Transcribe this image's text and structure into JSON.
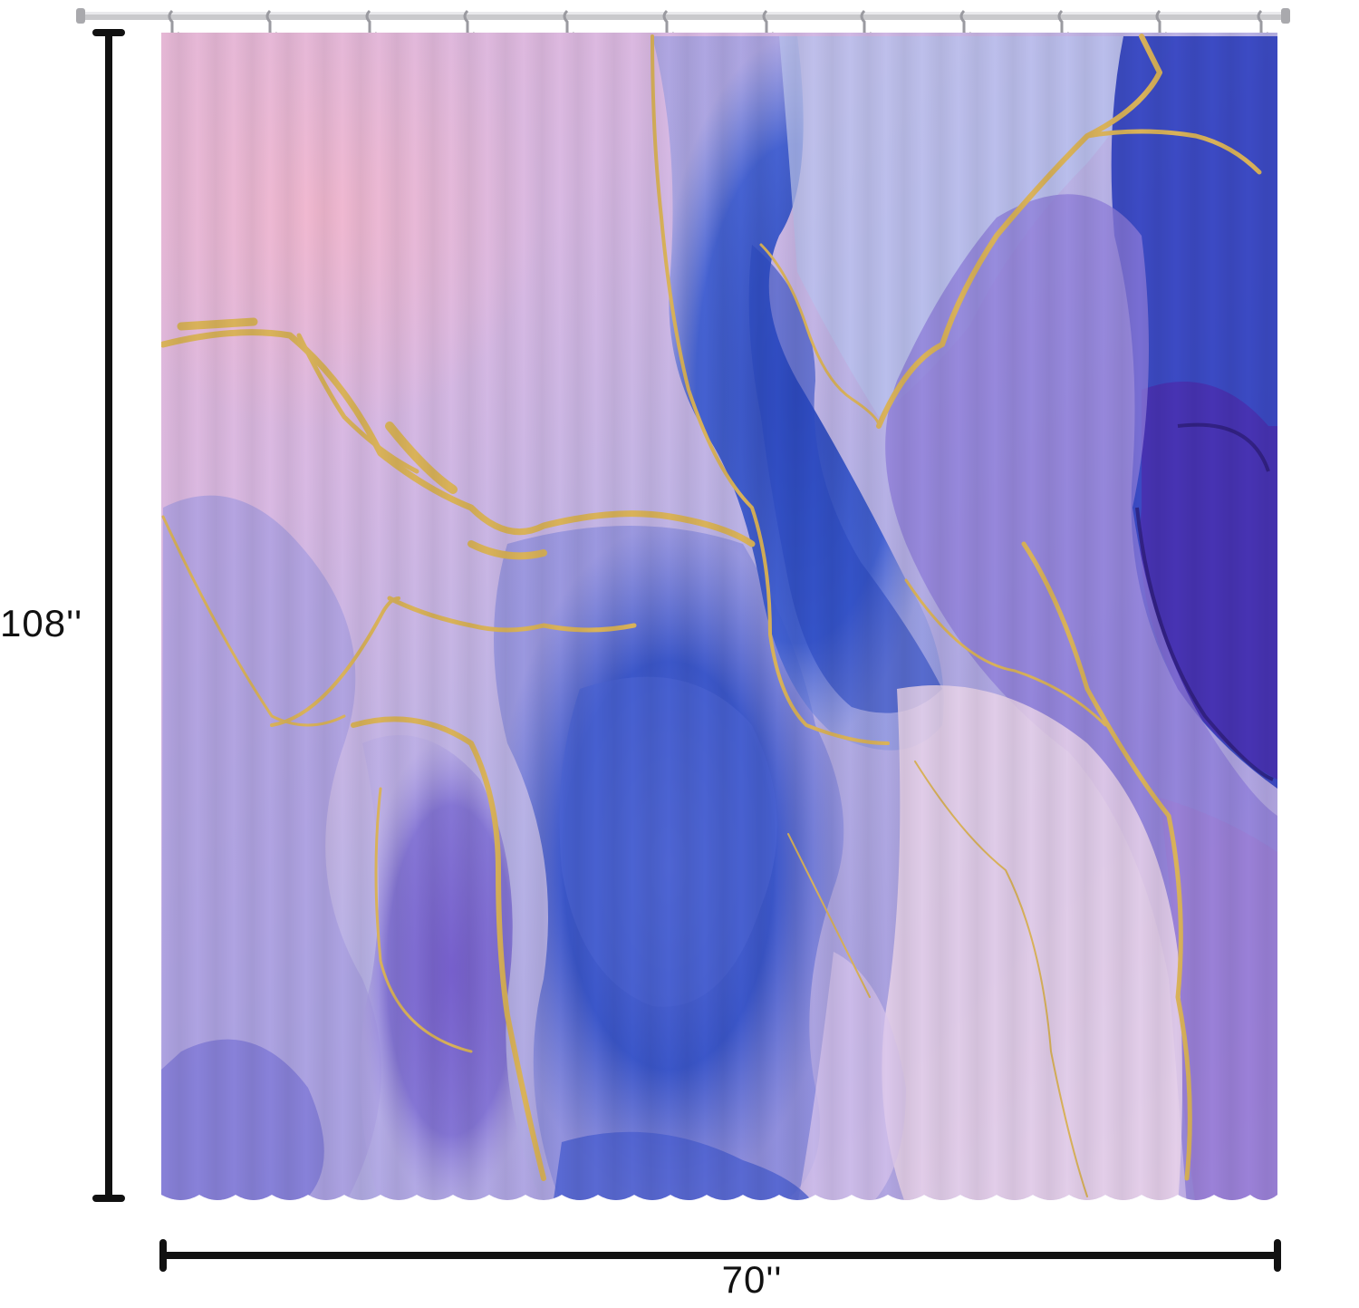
{
  "dimensions": {
    "height_label": "108''",
    "width_label": "70''"
  },
  "colors": {
    "background": "#ffffff",
    "rod": "#c9c9cc",
    "dimension_lines": "#111111",
    "marble_pink": "#e9b7d2",
    "marble_lavender": "#b9a6e0",
    "marble_blue": "#2f4fc4",
    "marble_purple": "#6b4fc0",
    "gold_veins": "#d9b25a"
  },
  "icons": {
    "hooks": "curtain-hook-icon",
    "rod": "shower-rod-icon"
  }
}
